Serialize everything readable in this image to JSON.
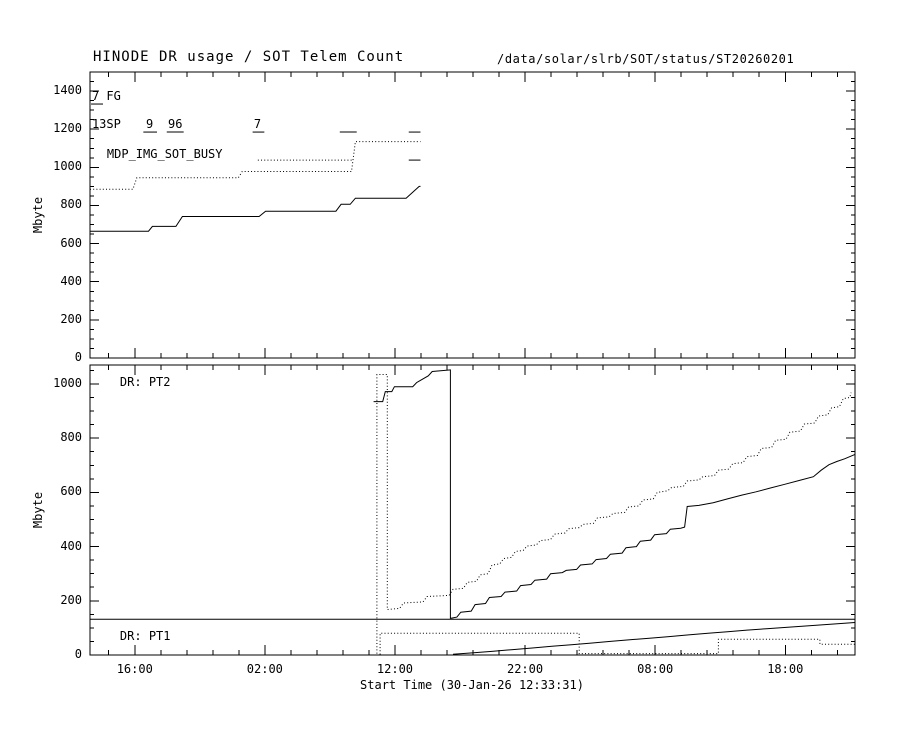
{
  "header": {
    "title": "HINODE DR usage / SOT Telem Count",
    "file_path": "/data/solar/slrb/SOT/status/ST20260201"
  },
  "xaxis": {
    "label": "Start Time (30-Jan-26 12:33:31)",
    "range_hours": [
      0,
      58.8
    ],
    "major_ticks": [
      {
        "t": 3.44,
        "label": "16:00"
      },
      {
        "t": 13.44,
        "label": "02:00"
      },
      {
        "t": 23.44,
        "label": "12:00"
      },
      {
        "t": 33.44,
        "label": "22:00"
      },
      {
        "t": 43.44,
        "label": "08:00"
      },
      {
        "t": 53.44,
        "label": "18:00"
      }
    ],
    "minor_tick_step_hours": 2,
    "minor_tick_start": 1.44
  },
  "chart_data": [
    {
      "type": "line",
      "panel": "top",
      "ylabel": "Mbyte",
      "ylim": [
        0,
        1500
      ],
      "ytick_step": 200,
      "ytick_minor_step": 50,
      "grid": false,
      "annotations": [
        {
          "text": "7 FG",
          "t": 0.15,
          "y": 1369
        },
        {
          "text": "13SP",
          "t": 0.15,
          "y": 1222
        },
        {
          "text": "9",
          "t": 4.3,
          "y": 1222
        },
        {
          "text": "96",
          "t": 6.0,
          "y": 1222
        },
        {
          "text": "7",
          "t": 12.6,
          "y": 1222
        },
        {
          "text": "MDP_IMG_SOT_BUSY",
          "t": 1.3,
          "y": 1065
        }
      ],
      "series": [
        {
          "name": "sot-telem-count-solid",
          "style": "solid",
          "points": [
            [
              0,
              665
            ],
            [
              4.5,
              665
            ],
            [
              4.8,
              690
            ],
            [
              6.6,
              690
            ],
            [
              7.1,
              742
            ],
            [
              13.0,
              742
            ],
            [
              13.5,
              770
            ],
            [
              18.9,
              770
            ],
            [
              19.3,
              806
            ],
            [
              20.0,
              806
            ],
            [
              20.4,
              838
            ],
            [
              24.3,
              838
            ],
            [
              25.3,
              900
            ],
            [
              25.4,
              900
            ]
          ]
        },
        {
          "name": "dr-usage-dotted",
          "style": "dotted",
          "points": [
            [
              0,
              885
            ],
            [
              3.3,
              885
            ],
            [
              3.6,
              945
            ],
            [
              11.4,
              945
            ],
            [
              11.7,
              978
            ],
            [
              20.1,
              978
            ],
            [
              20.4,
              1135
            ],
            [
              25.4,
              1135
            ]
          ]
        }
      ],
      "interval_markers": [
        {
          "style": "solid",
          "y": 1332,
          "spans": [
            [
              0.08,
              1.0
            ]
          ]
        },
        {
          "style": "solid",
          "y": 1185,
          "spans": [
            [
              4.1,
              5.15
            ],
            [
              5.9,
              7.2
            ],
            [
              12.5,
              13.4
            ],
            [
              19.2,
              20.5
            ],
            [
              24.5,
              25.4
            ]
          ]
        },
        {
          "style": "dotted",
          "y": 1038,
          "spans": [
            [
              12.9,
              20.2
            ]
          ]
        },
        {
          "style": "solid",
          "y": 1038,
          "spans": [
            [
              24.5,
              25.4
            ]
          ]
        }
      ]
    },
    {
      "type": "line",
      "panel": "bottom",
      "ylabel": "Mbyte",
      "ylim": [
        0,
        1070
      ],
      "ytick_step": 200,
      "ytick_minor_step": 50,
      "grid": false,
      "annotations": [
        {
          "text": "DR: PT2",
          "t": 2.3,
          "y": 1003
        },
        {
          "text": "DR: PT1",
          "t": 2.3,
          "y": 66
        }
      ],
      "series": [
        {
          "name": "pt1-capacity-line",
          "style": "solid",
          "points": [
            [
              0,
              132
            ],
            [
              58.8,
              132
            ]
          ]
        },
        {
          "name": "dr-pt2-solid",
          "style": "solid",
          "points": [
            [
              21.8,
              935
            ],
            [
              22.5,
              935
            ],
            [
              22.7,
              972
            ],
            [
              23.2,
              972
            ],
            [
              23.4,
              990
            ],
            [
              24.8,
              990
            ],
            [
              25.1,
              1005
            ],
            [
              26.0,
              1030
            ],
            [
              26.3,
              1046
            ],
            [
              27.7,
              1052
            ],
            [
              27.7,
              135
            ],
            [
              28.2,
              140
            ],
            [
              28.5,
              158
            ],
            [
              29.3,
              162
            ],
            [
              29.6,
              186
            ],
            [
              30.4,
              190
            ],
            [
              30.7,
              212
            ],
            [
              31.6,
              216
            ],
            [
              31.9,
              232
            ],
            [
              32.8,
              236
            ],
            [
              33.1,
              256
            ],
            [
              33.9,
              260
            ],
            [
              34.2,
              276
            ],
            [
              35.1,
              280
            ],
            [
              35.4,
              300
            ],
            [
              36.3,
              304
            ],
            [
              36.6,
              312
            ],
            [
              37.4,
              316
            ],
            [
              37.7,
              332
            ],
            [
              38.6,
              336
            ],
            [
              38.9,
              352
            ],
            [
              39.7,
              356
            ],
            [
              40.0,
              372
            ],
            [
              40.9,
              376
            ],
            [
              41.2,
              396
            ],
            [
              42.0,
              400
            ],
            [
              42.3,
              420
            ],
            [
              43.1,
              424
            ],
            [
              43.4,
              444
            ],
            [
              44.3,
              448
            ],
            [
              44.6,
              464
            ],
            [
              45.4,
              468
            ],
            [
              45.7,
              472
            ],
            [
              45.9,
              548
            ],
            [
              46.8,
              552
            ],
            [
              47.9,
              562
            ],
            [
              49.0,
              576
            ],
            [
              50.1,
              590
            ],
            [
              51.2,
              602
            ],
            [
              52.3,
              616
            ],
            [
              53.4,
              630
            ],
            [
              54.5,
              644
            ],
            [
              55.6,
              658
            ],
            [
              56.2,
              682
            ],
            [
              56.8,
              702
            ],
            [
              57.4,
              714
            ],
            [
              58.0,
              724
            ],
            [
              58.8,
              740
            ]
          ]
        },
        {
          "name": "dr-pt2-dotted",
          "style": "dotted",
          "points": [
            [
              22.05,
              5
            ],
            [
              22.05,
              1035
            ],
            [
              22.85,
              1035
            ],
            [
              22.85,
              168
            ],
            [
              23.8,
              172
            ],
            [
              24.1,
              192
            ],
            [
              25.6,
              196
            ],
            [
              25.9,
              216
            ],
            [
              27.6,
              220
            ],
            [
              27.9,
              242
            ],
            [
              28.7,
              246
            ],
            [
              29.0,
              268
            ],
            [
              29.7,
              272
            ],
            [
              30.0,
              296
            ],
            [
              30.6,
              300
            ],
            [
              30.9,
              332
            ],
            [
              31.5,
              336
            ],
            [
              31.8,
              356
            ],
            [
              32.4,
              360
            ],
            [
              32.7,
              382
            ],
            [
              33.3,
              386
            ],
            [
              33.6,
              402
            ],
            [
              34.3,
              406
            ],
            [
              34.6,
              422
            ],
            [
              35.4,
              426
            ],
            [
              35.7,
              446
            ],
            [
              36.5,
              450
            ],
            [
              36.8,
              466
            ],
            [
              37.6,
              470
            ],
            [
              37.9,
              482
            ],
            [
              38.7,
              486
            ],
            [
              39.0,
              506
            ],
            [
              39.9,
              510
            ],
            [
              40.2,
              522
            ],
            [
              41.1,
              526
            ],
            [
              41.4,
              546
            ],
            [
              42.2,
              550
            ],
            [
              42.5,
              572
            ],
            [
              43.3,
              576
            ],
            [
              43.6,
              600
            ],
            [
              44.4,
              606
            ],
            [
              44.7,
              618
            ],
            [
              45.6,
              622
            ],
            [
              45.9,
              642
            ],
            [
              46.8,
              646
            ],
            [
              47.1,
              658
            ],
            [
              48.0,
              662
            ],
            [
              48.3,
              682
            ],
            [
              49.1,
              686
            ],
            [
              49.4,
              706
            ],
            [
              50.2,
              710
            ],
            [
              50.5,
              732
            ],
            [
              51.3,
              736
            ],
            [
              51.6,
              762
            ],
            [
              52.4,
              766
            ],
            [
              52.7,
              792
            ],
            [
              53.5,
              796
            ],
            [
              53.8,
              822
            ],
            [
              54.6,
              826
            ],
            [
              54.9,
              852
            ],
            [
              55.7,
              856
            ],
            [
              56.0,
              882
            ],
            [
              56.7,
              886
            ],
            [
              57.0,
              912
            ],
            [
              57.6,
              916
            ],
            [
              57.9,
              946
            ],
            [
              58.4,
              950
            ],
            [
              58.5,
              968
            ]
          ]
        },
        {
          "name": "dr-pt1-solid",
          "style": "solid",
          "points": [
            [
              27.9,
              3
            ],
            [
              29.5,
              8
            ],
            [
              31.0,
              14
            ],
            [
              32.5,
              20
            ],
            [
              34.0,
              26
            ],
            [
              35.5,
              32
            ],
            [
              37.0,
              38
            ],
            [
              38.5,
              44
            ],
            [
              40.0,
              50
            ],
            [
              41.5,
              56
            ],
            [
              43.0,
              62
            ],
            [
              44.5,
              68
            ],
            [
              46.0,
              74
            ],
            [
              47.5,
              80
            ],
            [
              49.0,
              86
            ],
            [
              50.5,
              92
            ],
            [
              52.0,
              97
            ],
            [
              53.5,
              102
            ],
            [
              55.0,
              107
            ],
            [
              56.5,
              112
            ],
            [
              58.8,
              120
            ]
          ]
        },
        {
          "name": "dr-pt1-dotted",
          "style": "dotted",
          "points": [
            [
              22.3,
              2
            ],
            [
              22.3,
              80
            ],
            [
              37.6,
              80
            ],
            [
              37.6,
              5
            ],
            [
              48.3,
              5
            ],
            [
              48.3,
              58
            ],
            [
              56.1,
              58
            ],
            [
              56.1,
              40
            ],
            [
              58.8,
              40
            ]
          ]
        }
      ],
      "interval_markers": []
    }
  ]
}
